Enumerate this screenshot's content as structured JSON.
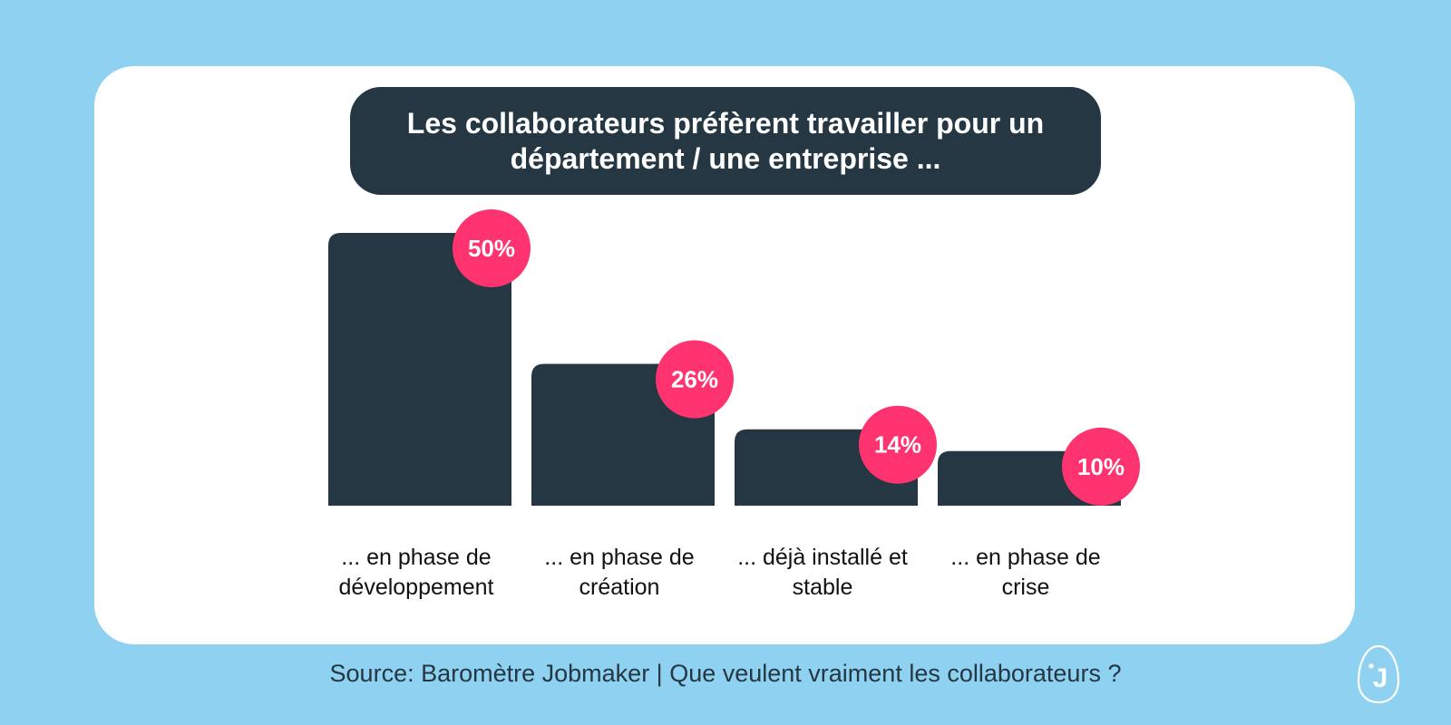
{
  "title": "Les collaborateurs préfèrent travailler pour un département / une entreprise ...",
  "source": "Source: Baromètre Jobmaker |  Que veulent vraiment les collaborateurs ?",
  "logo_letter": "J",
  "colors": {
    "background": "#8ed1f1",
    "card": "#ffffff",
    "bar": "#243743",
    "badge": "#ff336f",
    "text": "#111111"
  },
  "chart_data": {
    "type": "bar",
    "title": "Les collaborateurs préfèrent travailler pour un département / une entreprise ...",
    "categories": [
      [
        "... en phase de",
        "développement"
      ],
      [
        "... en phase de",
        "création"
      ],
      [
        "... déjà installé et",
        "stable"
      ],
      [
        "... en phase de",
        "crise"
      ]
    ],
    "values": [
      50,
      26,
      14,
      10
    ],
    "value_labels": [
      "50%",
      "26%",
      "14%",
      "10%"
    ],
    "unit": "%",
    "ylim": [
      0,
      50
    ],
    "grid": false
  }
}
